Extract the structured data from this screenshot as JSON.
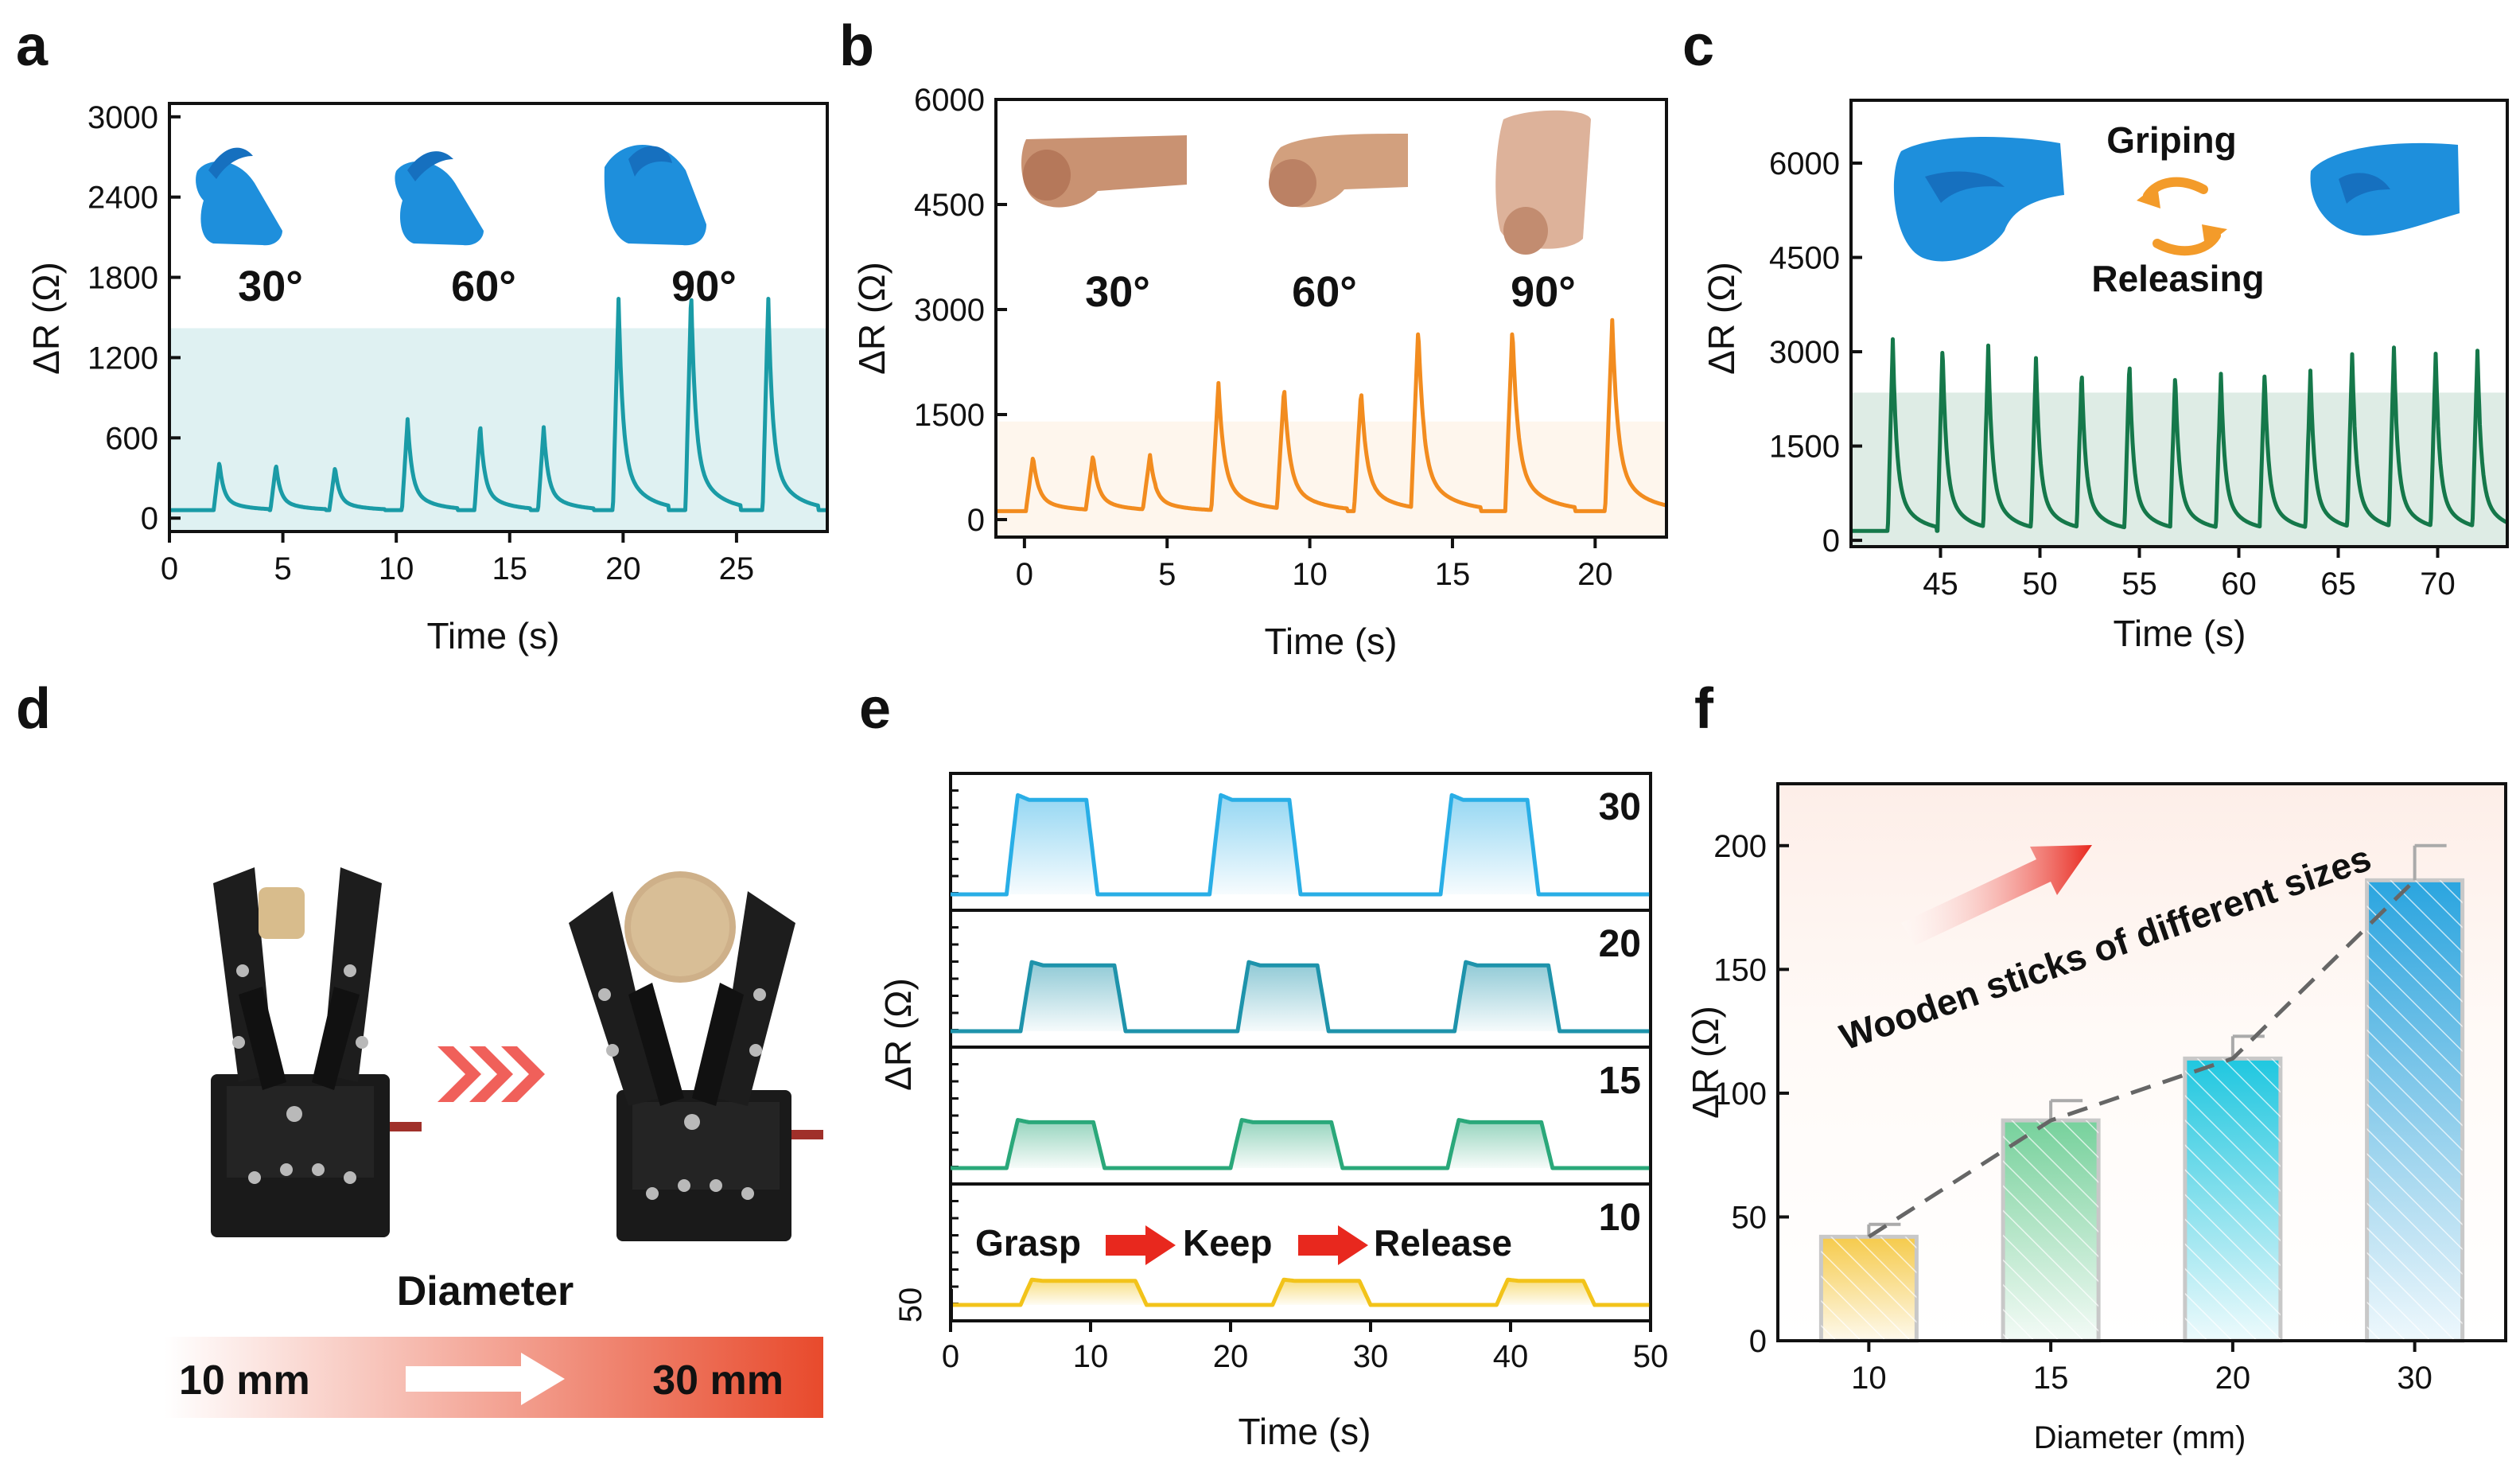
{
  "panel_labels": {
    "a": "a",
    "b": "b",
    "c": "c",
    "d": "d",
    "e": "e",
    "f": "f"
  },
  "colors": {
    "a": "#1a9ba6",
    "b": "#f28c1f",
    "c": "#15784a",
    "e30": "#29aee6",
    "e20": "#1e93ab",
    "e15": "#2aa87a",
    "e10": "#f2c31a",
    "f10": "#f5c842",
    "f15": "#6fcf97",
    "f20": "#1fc7e0",
    "f30": "#2aa5e0",
    "arrow_red": "#e8281e"
  },
  "chart_data": [
    {
      "id": "a",
      "type": "line",
      "title": "",
      "xlabel": "Time (s)",
      "ylabel": "ΔR (Ω)",
      "xlim": [
        0,
        29
      ],
      "ylim": [
        -100,
        3100
      ],
      "xticks": [
        0,
        5,
        10,
        15,
        20,
        25
      ],
      "yticks": [
        0,
        600,
        1200,
        1800,
        2400,
        3000
      ],
      "annotations": [
        "30°",
        "60°",
        "90°"
      ],
      "shaded_band": [
        -100,
        1420
      ],
      "baseline": 60,
      "peaks": [
        [
          2.2,
          420
        ],
        [
          4.7,
          400
        ],
        [
          7.3,
          380
        ],
        [
          10.5,
          740
        ],
        [
          13.7,
          700
        ],
        [
          16.5,
          680
        ],
        [
          19.8,
          1640
        ],
        [
          23.0,
          1700
        ],
        [
          26.4,
          1640
        ]
      ]
    },
    {
      "id": "b",
      "type": "line",
      "title": "",
      "xlabel": "Time (s)",
      "ylabel": "ΔR (Ω)",
      "xlim": [
        -1,
        22.5
      ],
      "ylim": [
        -250,
        6000
      ],
      "xticks": [
        0,
        5,
        10,
        15,
        20
      ],
      "yticks": [
        0,
        1500,
        3000,
        4500,
        6000
      ],
      "annotations": [
        "30°",
        "60°",
        "90°"
      ],
      "shaded_band": [
        -250,
        1400
      ],
      "baseline": 120,
      "peaks": [
        [
          0.3,
          900
        ],
        [
          2.4,
          900
        ],
        [
          4.4,
          900
        ],
        [
          6.8,
          1950
        ],
        [
          9.1,
          1900
        ],
        [
          11.8,
          1850
        ],
        [
          13.8,
          2700
        ],
        [
          17.1,
          2750
        ],
        [
          20.6,
          2850
        ]
      ]
    },
    {
      "id": "c",
      "type": "line",
      "title": "",
      "xlabel": "Time (s)",
      "ylabel": "ΔR (Ω)",
      "xlim": [
        40.5,
        73.5
      ],
      "ylim": [
        -100,
        7000
      ],
      "xticks": [
        45,
        50,
        55,
        60,
        65,
        70
      ],
      "yticks": [
        0,
        1500,
        3000,
        4500,
        6000
      ],
      "annotations": [
        "Griping",
        "Releasing"
      ],
      "shaded_band": [
        -100,
        2350
      ],
      "baseline": 150,
      "peaks": [
        [
          42.6,
          3200
        ],
        [
          45.1,
          3100
        ],
        [
          47.4,
          3100
        ],
        [
          49.8,
          2900
        ],
        [
          52.1,
          2700
        ],
        [
          54.5,
          2850
        ],
        [
          56.8,
          2650
        ],
        [
          59.1,
          2650
        ],
        [
          61.3,
          2650
        ],
        [
          63.6,
          2700
        ],
        [
          65.7,
          2900
        ],
        [
          67.8,
          3000
        ],
        [
          69.9,
          2900
        ],
        [
          72.0,
          2950
        ]
      ]
    },
    {
      "id": "e",
      "type": "line",
      "title": "",
      "xlabel": "Time (s)",
      "ylabel": "ΔR (Ω)",
      "xlim": [
        0,
        50
      ],
      "xticks": [
        0,
        10,
        20,
        30,
        40,
        50
      ],
      "scale_bar_label": "50",
      "series": [
        {
          "name": "30",
          "plateau": 165,
          "windows": [
            [
              4,
              10.5
            ],
            [
              18.5,
              25
            ],
            [
              35,
              42
            ]
          ]
        },
        {
          "name": "20",
          "plateau": 115,
          "windows": [
            [
              5,
              12.5
            ],
            [
              20.5,
              27
            ],
            [
              36,
              43.5
            ]
          ]
        },
        {
          "name": "15",
          "plateau": 80,
          "windows": [
            [
              4,
              11
            ],
            [
              20,
              28
            ],
            [
              35.5,
              43
            ]
          ]
        },
        {
          "name": "10",
          "plateau": 42,
          "windows": [
            [
              5,
              14
            ],
            [
              23,
              30
            ],
            [
              39,
              46
            ]
          ]
        }
      ],
      "annotations": [
        "Grasp",
        "Keep",
        "Release"
      ]
    },
    {
      "id": "f",
      "type": "bar",
      "title": "",
      "xlabel": "Diameter (mm)",
      "ylabel": "ΔR (Ω)",
      "categories": [
        "10",
        "15",
        "20",
        "30"
      ],
      "values": [
        42,
        89,
        114,
        186
      ],
      "errors": [
        5,
        8,
        9,
        14
      ],
      "ylim": [
        0,
        225
      ],
      "yticks": [
        0,
        50,
        100,
        150,
        200
      ],
      "annotation": "Wooden sticks of different sizes"
    }
  ],
  "panel_d": {
    "caption": "Diameter",
    "range_start": "10 mm",
    "range_end": "30 mm"
  }
}
